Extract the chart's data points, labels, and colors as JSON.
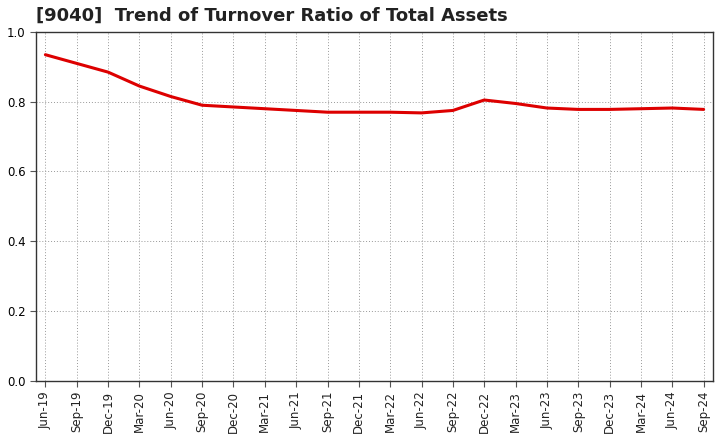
{
  "title": "[9040]  Trend of Turnover Ratio of Total Assets",
  "x_labels": [
    "Jun-19",
    "Sep-19",
    "Dec-19",
    "Mar-20",
    "Jun-20",
    "Sep-20",
    "Dec-20",
    "Mar-21",
    "Jun-21",
    "Sep-21",
    "Dec-21",
    "Mar-22",
    "Jun-22",
    "Sep-22",
    "Dec-22",
    "Mar-23",
    "Jun-23",
    "Sep-23",
    "Dec-23",
    "Mar-24",
    "Jun-24",
    "Sep-24"
  ],
  "y_values": [
    0.935,
    0.91,
    0.885,
    0.845,
    0.815,
    0.79,
    0.785,
    0.78,
    0.775,
    0.77,
    0.77,
    0.77,
    0.768,
    0.775,
    0.805,
    0.795,
    0.782,
    0.778,
    0.778,
    0.78,
    0.782,
    0.778
  ],
  "line_color": "#dd0000",
  "line_width": 2.2,
  "ylim": [
    0.0,
    1.0
  ],
  "yticks": [
    0.0,
    0.2,
    0.4,
    0.6,
    0.8,
    1.0
  ],
  "background_color": "#ffffff",
  "plot_area_color": "#ffffff",
  "grid_color": "#999999",
  "title_fontsize": 13,
  "tick_fontsize": 8.5,
  "title_color": "#222222"
}
